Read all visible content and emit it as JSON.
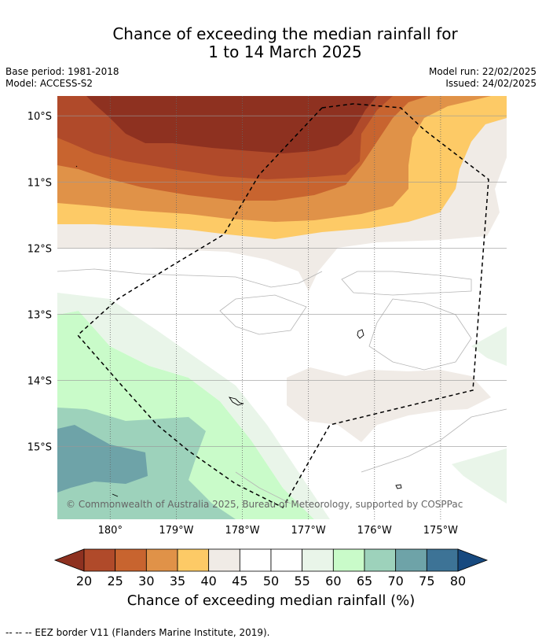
{
  "header": {
    "title_line1": "Chance of exceeding the median rainfall for",
    "title_line2": "1 to 14 March 2025",
    "base_period": "Base period: 1981-2018",
    "model": "Model: ACCESS-S2",
    "model_run": "Model run: 22/02/2025",
    "issued": "Issued: 24/02/2025"
  },
  "map": {
    "lat_labels": [
      "10°S",
      "11°S",
      "12°S",
      "13°S",
      "14°S",
      "15°S"
    ],
    "lat_values": [
      -10,
      -11,
      -12,
      -13,
      -14,
      -15
    ],
    "lon_labels": [
      "180°",
      "179°W",
      "178°W",
      "177°W",
      "176°W",
      "175°W"
    ],
    "lon_values": [
      -180,
      -179,
      -178,
      -177,
      -176,
      -175
    ],
    "lon_range": [
      -180.8,
      -174.0
    ],
    "lat_range": [
      -16.1,
      -9.7
    ],
    "copyright": "© Commonwealth of Australia 2025, Bureau of Meteorology, supported by COSPPac"
  },
  "colorbar": {
    "ticks": [
      "20",
      "25",
      "30",
      "35",
      "40",
      "45",
      "50",
      "55",
      "60",
      "65",
      "70",
      "75",
      "80"
    ],
    "colors": [
      "#8e3120",
      "#b04a2a",
      "#c8642f",
      "#e09248",
      "#fdca66",
      "#f0ebe6",
      "#ffffff",
      "#ffffff",
      "#e9f5e9",
      "#c9fbc9",
      "#9dd2bb",
      "#6ea3a8",
      "#3d7396",
      "#17497f"
    ],
    "label": "Chance of exceeding median rainfall (%)"
  },
  "footer": {
    "eez_note": "--  --  -- EEZ border V11 (Flanders Marine Institute, 2019)."
  }
}
